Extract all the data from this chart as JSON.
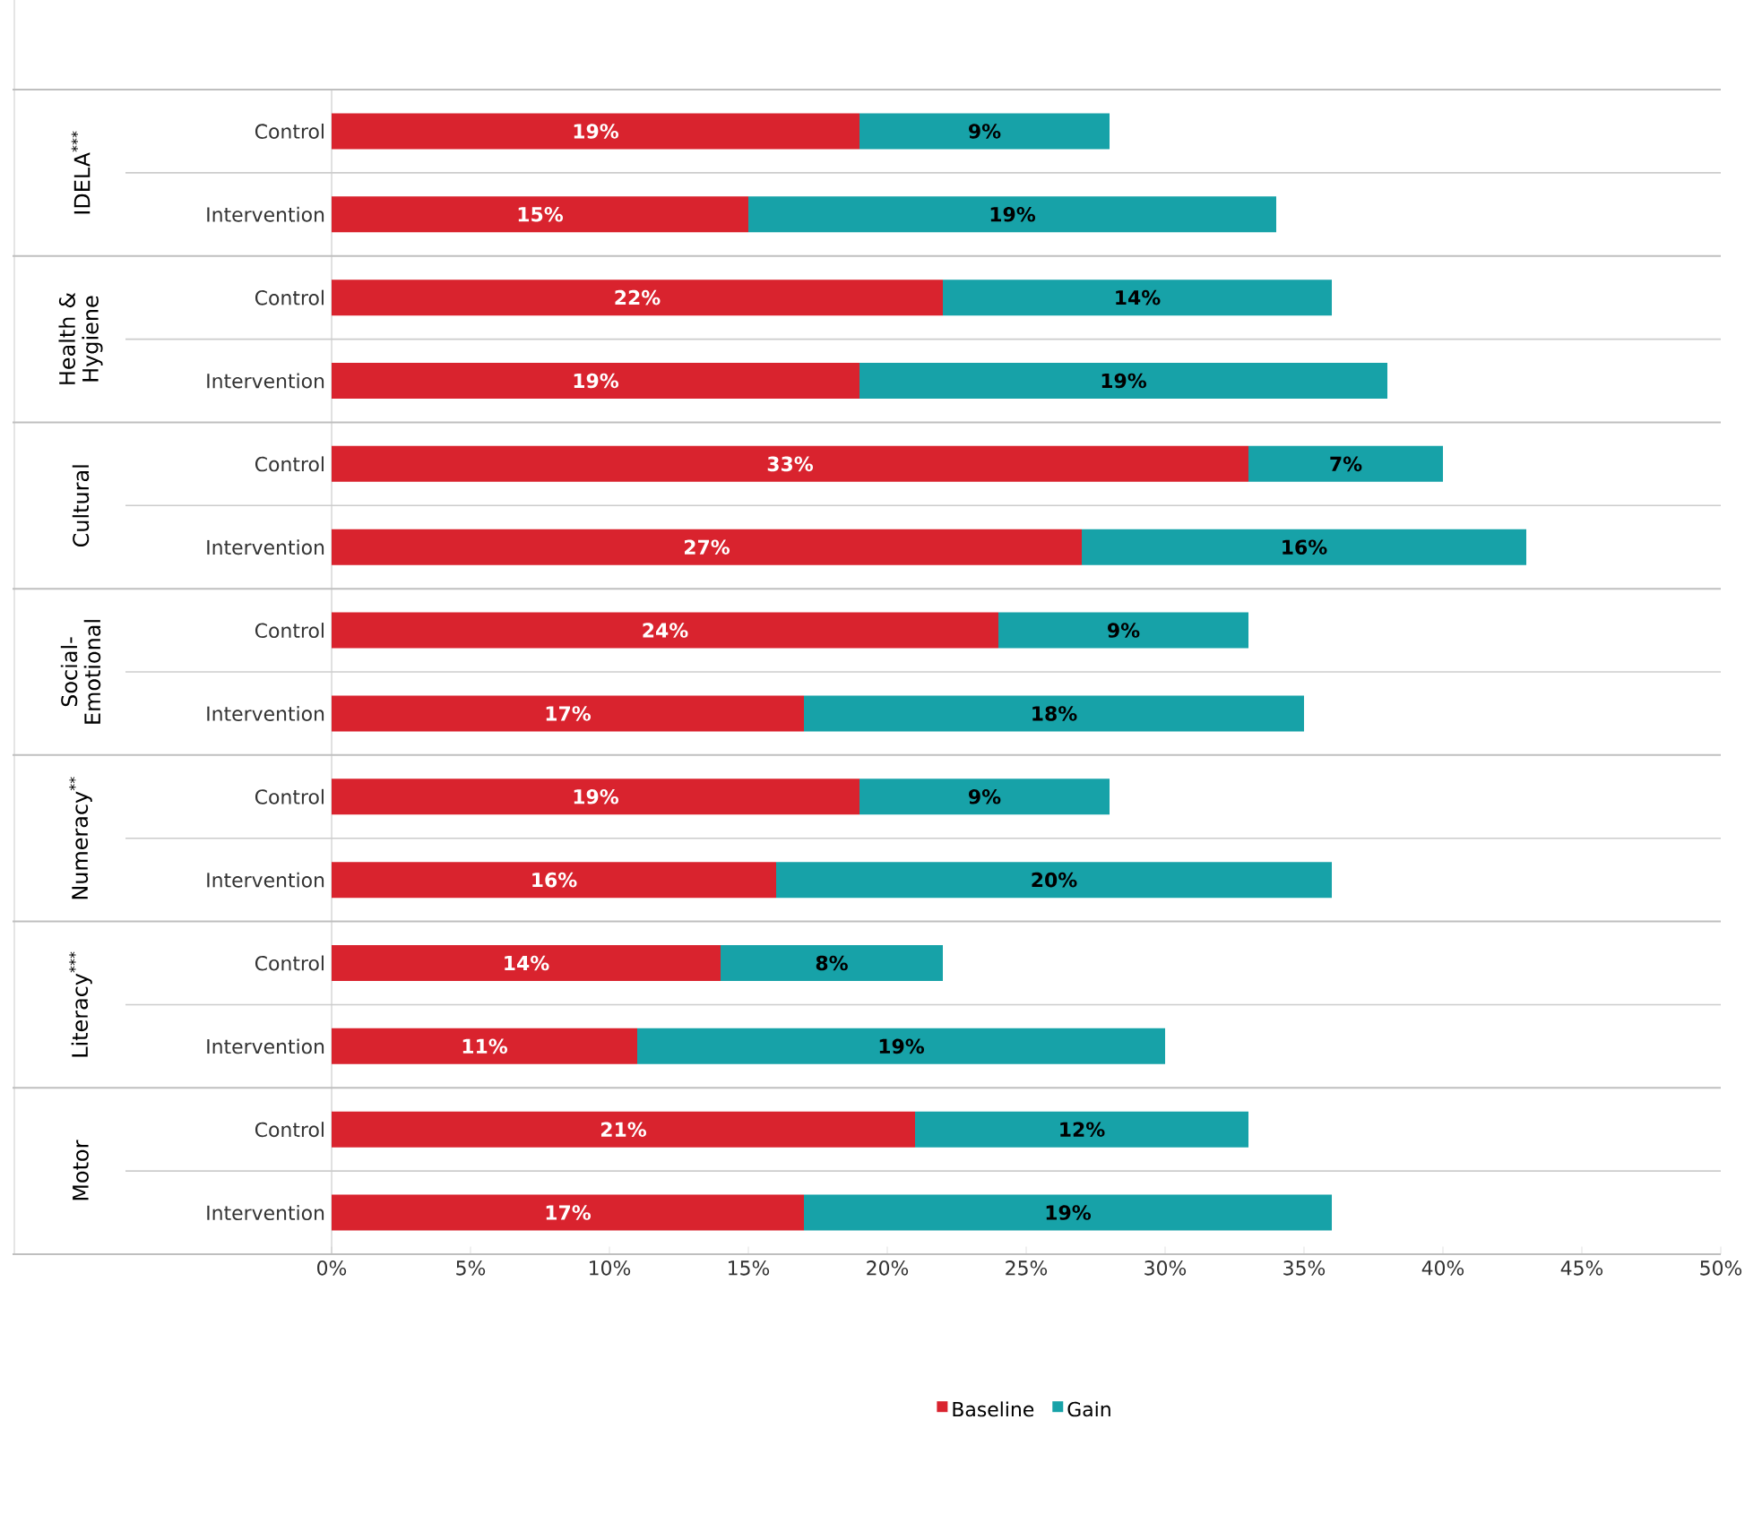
{
  "chart_data": {
    "type": "bar",
    "orientation": "horizontal",
    "stacked": true,
    "categories": [
      "Control",
      "Intervention",
      "Control",
      "Intervention",
      "Control",
      "Intervention",
      "Control",
      "Intervention",
      "Control",
      "Intervention",
      "Control",
      "Intervention",
      "Control",
      "Intervention"
    ],
    "series": [
      {
        "name": "Baseline",
        "color": "#d9232e",
        "values": [
          19,
          15,
          22,
          19,
          33,
          27,
          24,
          17,
          19,
          16,
          14,
          11,
          21,
          17
        ],
        "value_labels": [
          "19%",
          "15%",
          "22%",
          "19%",
          "33%",
          "27%",
          "24%",
          "17%",
          "19%",
          "16%",
          "14%",
          "11%",
          "21%",
          "17%"
        ]
      },
      {
        "name": "Gain",
        "color": "#17a2a8",
        "values": [
          9,
          19,
          14,
          19,
          7,
          16,
          9,
          18,
          9,
          20,
          8,
          19,
          12,
          19
        ],
        "value_labels": [
          "9%",
          "19%",
          "14%",
          "19%",
          "7%",
          "16%",
          "9%",
          "18%",
          "9%",
          "20%",
          "8%",
          "19%",
          "12%",
          "19%"
        ]
      }
    ],
    "xlim": [
      0,
      50
    ],
    "xticks": [
      {
        "value": 0,
        "label": "0%"
      },
      {
        "value": 5,
        "label": "5%"
      },
      {
        "value": 10,
        "label": "10%"
      },
      {
        "value": 15,
        "label": "15%"
      },
      {
        "value": 20,
        "label": "20%"
      },
      {
        "value": 25,
        "label": "25%"
      },
      {
        "value": 30,
        "label": "30%"
      },
      {
        "value": 35,
        "label": "35%"
      },
      {
        "value": 40,
        "label": "40%"
      },
      {
        "value": 45,
        "label": "45%"
      },
      {
        "value": 50,
        "label": "50%"
      }
    ],
    "annotations": [
      "IDELA$^{***}$",
      "Health & Hygiene",
      "Cultural",
      "Social-Emotional",
      "Numeracy$^{**}$",
      "Literacy$^{***}$",
      "Motor"
    ],
    "legend": "bottom",
    "grid": false
  }
}
